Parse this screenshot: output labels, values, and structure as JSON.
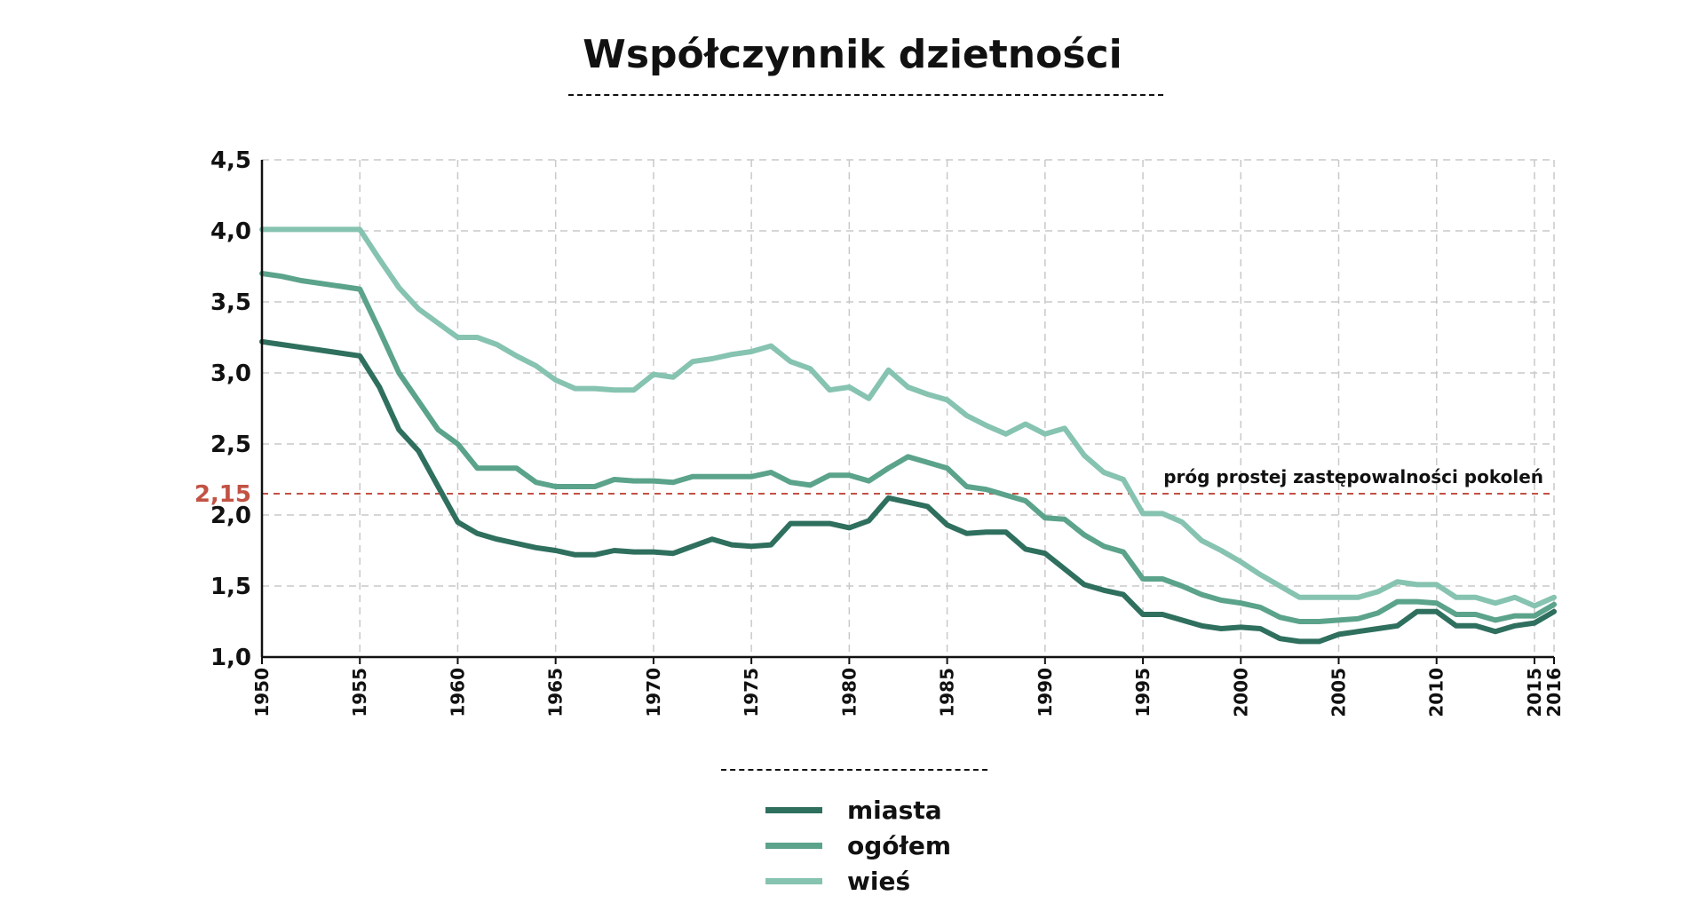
{
  "chart_data": {
    "type": "line",
    "title": "Współczynnik dzietności",
    "xlabel": "",
    "ylabel": "",
    "xlim": [
      1950,
      2016
    ],
    "ylim": [
      1.0,
      4.5
    ],
    "y_ticks": [
      1.0,
      1.5,
      2.0,
      2.5,
      3.0,
      3.5,
      4.0,
      4.5
    ],
    "y_tick_labels": [
      "1,0",
      "1,5",
      "2,0",
      "2,5",
      "3,0",
      "3,5",
      "4,0",
      "4,5"
    ],
    "x_ticks": [
      1950,
      1955,
      1960,
      1965,
      1970,
      1975,
      1980,
      1985,
      1990,
      1995,
      2000,
      2005,
      2010,
      2015,
      2016
    ],
    "x_tick_labels": [
      "1950",
      "1955",
      "1960",
      "1965",
      "1970",
      "1975",
      "1980",
      "1985",
      "1990",
      "1995",
      "2000",
      "2005",
      "2010",
      "2015",
      "2016"
    ],
    "grid": true,
    "legend_position": "bottom-center",
    "threshold": {
      "value": 2.15,
      "label": "2,15",
      "note": "próg prostej zastępowalności pokoleń",
      "color": "#c25244"
    },
    "x": [
      1950,
      1951,
      1952,
      1953,
      1954,
      1955,
      1956,
      1957,
      1958,
      1959,
      1960,
      1961,
      1962,
      1963,
      1964,
      1965,
      1966,
      1967,
      1968,
      1969,
      1970,
      1971,
      1972,
      1973,
      1974,
      1975,
      1976,
      1977,
      1978,
      1979,
      1980,
      1981,
      1982,
      1983,
      1984,
      1985,
      1986,
      1987,
      1988,
      1989,
      1990,
      1991,
      1992,
      1993,
      1994,
      1995,
      1996,
      1997,
      1998,
      1999,
      2000,
      2001,
      2002,
      2003,
      2004,
      2005,
      2006,
      2007,
      2008,
      2009,
      2010,
      2011,
      2012,
      2013,
      2014,
      2015,
      2016
    ],
    "series": [
      {
        "name": "miasta",
        "color": "#2f6f5e",
        "values": [
          3.22,
          3.2,
          3.18,
          3.16,
          3.14,
          3.12,
          2.9,
          2.6,
          2.45,
          2.2,
          1.95,
          1.87,
          1.83,
          1.8,
          1.77,
          1.75,
          1.72,
          1.72,
          1.75,
          1.74,
          1.74,
          1.73,
          1.78,
          1.83,
          1.79,
          1.78,
          1.79,
          1.94,
          1.94,
          1.94,
          1.91,
          1.96,
          2.12,
          2.09,
          2.06,
          1.93,
          1.87,
          1.88,
          1.88,
          1.76,
          1.73,
          1.62,
          1.51,
          1.47,
          1.44,
          1.3,
          1.3,
          1.26,
          1.22,
          1.2,
          1.21,
          1.2,
          1.13,
          1.11,
          1.11,
          1.16,
          1.18,
          1.2,
          1.22,
          1.32,
          1.32,
          1.22,
          1.22,
          1.18,
          1.22,
          1.24,
          1.32
        ]
      },
      {
        "name": "ogółem",
        "color": "#5ba38b",
        "values": [
          3.7,
          3.68,
          3.65,
          3.63,
          3.61,
          3.59,
          3.3,
          3.0,
          2.8,
          2.6,
          2.5,
          2.33,
          2.33,
          2.33,
          2.23,
          2.2,
          2.2,
          2.2,
          2.25,
          2.24,
          2.24,
          2.23,
          2.27,
          2.27,
          2.27,
          2.27,
          2.3,
          2.23,
          2.21,
          2.28,
          2.28,
          2.24,
          2.33,
          2.41,
          2.37,
          2.33,
          2.2,
          2.18,
          2.14,
          2.1,
          1.98,
          1.97,
          1.86,
          1.78,
          1.74,
          1.55,
          1.55,
          1.5,
          1.44,
          1.4,
          1.38,
          1.35,
          1.28,
          1.25,
          1.25,
          1.26,
          1.27,
          1.31,
          1.39,
          1.39,
          1.38,
          1.3,
          1.3,
          1.26,
          1.29,
          1.29,
          1.37
        ]
      },
      {
        "name": "wieś",
        "color": "#86c3b0",
        "values": [
          4.01,
          4.01,
          4.01,
          4.01,
          4.01,
          4.01,
          3.8,
          3.6,
          3.45,
          3.35,
          3.25,
          3.25,
          3.2,
          3.12,
          3.05,
          2.95,
          2.89,
          2.89,
          2.88,
          2.88,
          2.99,
          2.97,
          3.08,
          3.1,
          3.13,
          3.15,
          3.19,
          3.08,
          3.03,
          2.88,
          2.9,
          2.82,
          3.02,
          2.9,
          2.85,
          2.81,
          2.7,
          2.63,
          2.57,
          2.64,
          2.57,
          2.61,
          2.42,
          2.3,
          2.25,
          2.01,
          2.01,
          1.95,
          1.82,
          1.75,
          1.67,
          1.58,
          1.5,
          1.42,
          1.42,
          1.42,
          1.42,
          1.46,
          1.53,
          1.51,
          1.51,
          1.42,
          1.42,
          1.38,
          1.42,
          1.36,
          1.42
        ]
      }
    ]
  }
}
